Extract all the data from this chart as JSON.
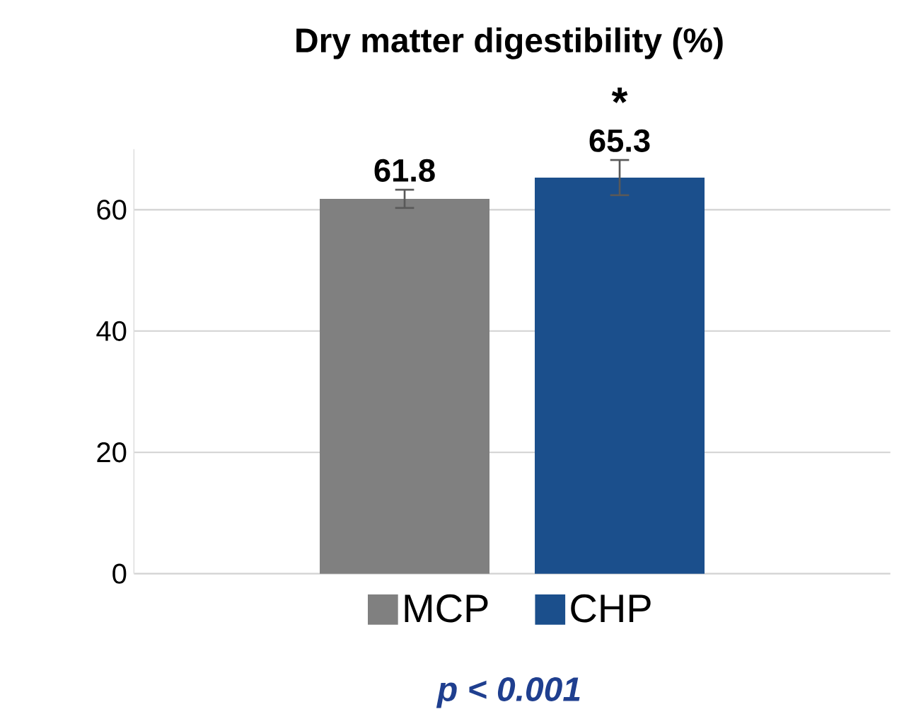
{
  "chart_data": {
    "type": "bar",
    "title": "Dry matter digestibility (%)",
    "categories": [
      null
    ],
    "series": [
      {
        "name": "MCP",
        "color": "#808080",
        "values": [
          61.8
        ],
        "errors": [
          1.5
        ]
      },
      {
        "name": "CHP",
        "color": "#1b4f8c",
        "values": [
          65.3
        ],
        "errors": [
          2.9
        ]
      }
    ],
    "ylim": [
      0,
      70
    ],
    "yticks": [
      0,
      20,
      40,
      60
    ],
    "grid": "y",
    "legend": "bottom",
    "data_labels": true,
    "annotations": [
      "*",
      "p < 0.001"
    ]
  }
}
